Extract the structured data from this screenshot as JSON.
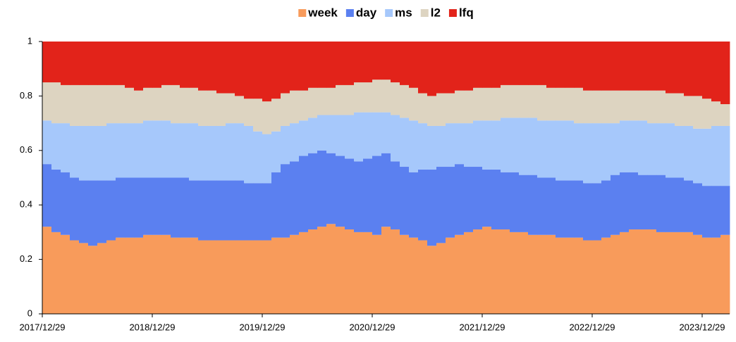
{
  "chart_data": {
    "type": "bar",
    "stacked": true,
    "legend": "top",
    "categories": [
      "2017/12/29",
      null,
      null,
      null,
      null,
      null,
      null,
      null,
      null,
      null,
      null,
      null,
      "2018/12/29",
      null,
      null,
      null,
      null,
      null,
      null,
      null,
      null,
      null,
      null,
      null,
      "2019/12/29",
      null,
      null,
      null,
      null,
      null,
      null,
      null,
      null,
      null,
      null,
      null,
      "2020/12/29",
      null,
      null,
      null,
      null,
      null,
      null,
      null,
      null,
      null,
      null,
      null,
      "2021/12/29",
      null,
      null,
      null,
      null,
      null,
      null,
      null,
      null,
      null,
      null,
      null,
      "2022/12/29",
      null,
      null,
      null,
      null,
      null,
      null,
      null,
      null,
      null,
      null,
      null,
      "2023/12/29",
      null,
      null
    ],
    "series": [
      {
        "name": "week",
        "color": "#f89b5b",
        "values": [
          0.32,
          0.3,
          0.29,
          0.27,
          0.26,
          0.25,
          0.26,
          0.27,
          0.28,
          0.28,
          0.28,
          0.29,
          0.29,
          0.29,
          0.28,
          0.28,
          0.28,
          0.27,
          0.27,
          0.27,
          0.27,
          0.27,
          0.27,
          0.27,
          0.27,
          0.28,
          0.28,
          0.29,
          0.3,
          0.31,
          0.32,
          0.33,
          0.32,
          0.31,
          0.3,
          0.3,
          0.29,
          0.32,
          0.31,
          0.29,
          0.28,
          0.27,
          0.25,
          0.26,
          0.28,
          0.29,
          0.3,
          0.31,
          0.32,
          0.31,
          0.31,
          0.3,
          0.3,
          0.29,
          0.29,
          0.29,
          0.28,
          0.28,
          0.28,
          0.27,
          0.27,
          0.28,
          0.29,
          0.3,
          0.31,
          0.31,
          0.31,
          0.3,
          0.3,
          0.3,
          0.3,
          0.29,
          0.28,
          0.28,
          0.29
        ]
      },
      {
        "name": "day",
        "color": "#5b80f0",
        "values": [
          0.23,
          0.23,
          0.23,
          0.23,
          0.23,
          0.24,
          0.23,
          0.22,
          0.22,
          0.22,
          0.22,
          0.21,
          0.21,
          0.21,
          0.22,
          0.22,
          0.21,
          0.22,
          0.22,
          0.22,
          0.22,
          0.22,
          0.21,
          0.21,
          0.21,
          0.24,
          0.27,
          0.27,
          0.28,
          0.28,
          0.28,
          0.26,
          0.26,
          0.26,
          0.26,
          0.27,
          0.29,
          0.27,
          0.25,
          0.25,
          0.24,
          0.26,
          0.28,
          0.28,
          0.26,
          0.26,
          0.24,
          0.23,
          0.21,
          0.22,
          0.21,
          0.22,
          0.21,
          0.22,
          0.21,
          0.21,
          0.21,
          0.21,
          0.21,
          0.21,
          0.21,
          0.21,
          0.22,
          0.22,
          0.21,
          0.2,
          0.2,
          0.21,
          0.2,
          0.2,
          0.19,
          0.19,
          0.19,
          0.19,
          0.18
        ]
      },
      {
        "name": "ms",
        "color": "#a6c8fb",
        "values": [
          0.16,
          0.17,
          0.18,
          0.19,
          0.2,
          0.2,
          0.2,
          0.21,
          0.2,
          0.2,
          0.2,
          0.21,
          0.21,
          0.21,
          0.2,
          0.2,
          0.21,
          0.2,
          0.2,
          0.2,
          0.21,
          0.21,
          0.21,
          0.19,
          0.18,
          0.15,
          0.14,
          0.14,
          0.13,
          0.13,
          0.13,
          0.14,
          0.15,
          0.16,
          0.18,
          0.17,
          0.16,
          0.15,
          0.17,
          0.18,
          0.19,
          0.17,
          0.16,
          0.15,
          0.16,
          0.15,
          0.16,
          0.17,
          0.18,
          0.18,
          0.2,
          0.2,
          0.21,
          0.21,
          0.21,
          0.21,
          0.22,
          0.22,
          0.21,
          0.22,
          0.22,
          0.21,
          0.19,
          0.19,
          0.19,
          0.2,
          0.19,
          0.19,
          0.2,
          0.19,
          0.2,
          0.2,
          0.21,
          0.22,
          0.22
        ]
      },
      {
        "name": "l2",
        "color": "#ddd4c1",
        "values": [
          0.14,
          0.15,
          0.14,
          0.15,
          0.15,
          0.15,
          0.15,
          0.14,
          0.14,
          0.13,
          0.12,
          0.12,
          0.12,
          0.13,
          0.14,
          0.13,
          0.13,
          0.13,
          0.13,
          0.12,
          0.11,
          0.1,
          0.1,
          0.12,
          0.12,
          0.12,
          0.12,
          0.12,
          0.11,
          0.11,
          0.1,
          0.1,
          0.11,
          0.11,
          0.11,
          0.11,
          0.12,
          0.12,
          0.12,
          0.12,
          0.12,
          0.11,
          0.11,
          0.12,
          0.11,
          0.12,
          0.12,
          0.12,
          0.12,
          0.12,
          0.12,
          0.12,
          0.12,
          0.12,
          0.13,
          0.12,
          0.12,
          0.12,
          0.13,
          0.12,
          0.12,
          0.12,
          0.12,
          0.11,
          0.11,
          0.11,
          0.12,
          0.12,
          0.11,
          0.12,
          0.11,
          0.12,
          0.11,
          0.09,
          0.08
        ]
      },
      {
        "name": "lfq",
        "color": "#e2231a",
        "values": [
          0.15,
          0.15,
          0.16,
          0.16,
          0.16,
          0.16,
          0.16,
          0.16,
          0.16,
          0.17,
          0.18,
          0.17,
          0.17,
          0.16,
          0.16,
          0.17,
          0.17,
          0.18,
          0.18,
          0.19,
          0.19,
          0.2,
          0.21,
          0.21,
          0.22,
          0.21,
          0.19,
          0.18,
          0.18,
          0.17,
          0.17,
          0.17,
          0.16,
          0.16,
          0.15,
          0.15,
          0.14,
          0.14,
          0.15,
          0.16,
          0.17,
          0.19,
          0.2,
          0.19,
          0.19,
          0.18,
          0.18,
          0.17,
          0.17,
          0.17,
          0.16,
          0.16,
          0.16,
          0.16,
          0.16,
          0.17,
          0.17,
          0.17,
          0.17,
          0.18,
          0.18,
          0.18,
          0.18,
          0.18,
          0.18,
          0.18,
          0.18,
          0.18,
          0.19,
          0.19,
          0.2,
          0.2,
          0.21,
          0.22,
          0.23
        ]
      }
    ],
    "ylim": [
      0,
      1
    ],
    "yticks": [
      0,
      0.2,
      0.4,
      0.6,
      0.8,
      1
    ],
    "grid": false
  }
}
